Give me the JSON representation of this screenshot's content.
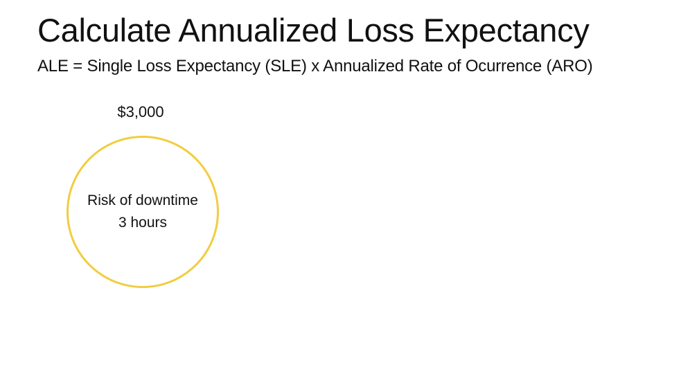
{
  "slide": {
    "title": "Calculate Annualized Loss Expectancy",
    "subtitle": "ALE = Single Loss Expectancy (SLE) x Annualized Rate of Ocurrence (ARO)"
  },
  "risk_node": {
    "cost": "$3,000",
    "line1": "Risk of downtime",
    "line2": "3 hours",
    "circle_color": "#f1cd3f"
  }
}
